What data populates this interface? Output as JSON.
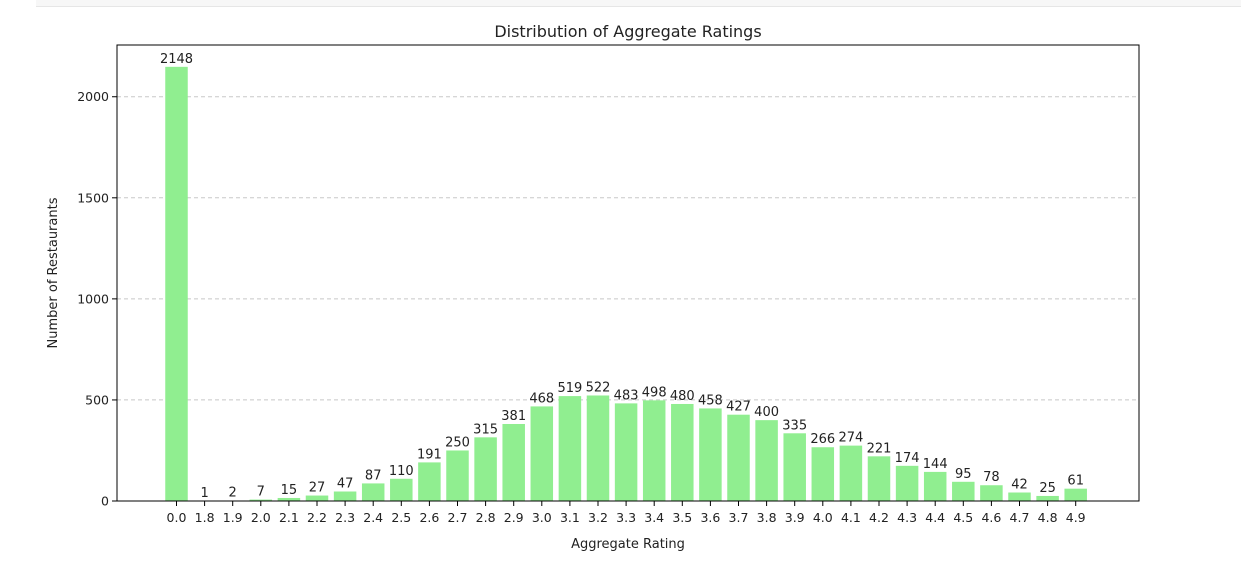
{
  "chart_data": {
    "type": "bar",
    "title": "Distribution of Aggregate Ratings",
    "xlabel": "Aggregate Rating",
    "ylabel": "Number of Restaurants",
    "categories": [
      "0.0",
      "1.8",
      "1.9",
      "2.0",
      "2.1",
      "2.2",
      "2.3",
      "2.4",
      "2.5",
      "2.6",
      "2.7",
      "2.8",
      "2.9",
      "3.0",
      "3.1",
      "3.2",
      "3.3",
      "3.4",
      "3.5",
      "3.6",
      "3.7",
      "3.8",
      "3.9",
      "4.0",
      "4.1",
      "4.2",
      "4.3",
      "4.4",
      "4.5",
      "4.6",
      "4.7",
      "4.8",
      "4.9"
    ],
    "values": [
      2148,
      1,
      2,
      7,
      15,
      27,
      47,
      87,
      110,
      191,
      250,
      315,
      381,
      468,
      519,
      522,
      483,
      498,
      480,
      458,
      427,
      400,
      335,
      266,
      274,
      221,
      174,
      144,
      95,
      78,
      42,
      25,
      61
    ],
    "ylim": [
      0,
      2256
    ],
    "yticks": [
      0,
      500,
      1000,
      1500,
      2000
    ],
    "grid": "y-dashed",
    "bar_color": "#90ee90",
    "legend": "none"
  }
}
